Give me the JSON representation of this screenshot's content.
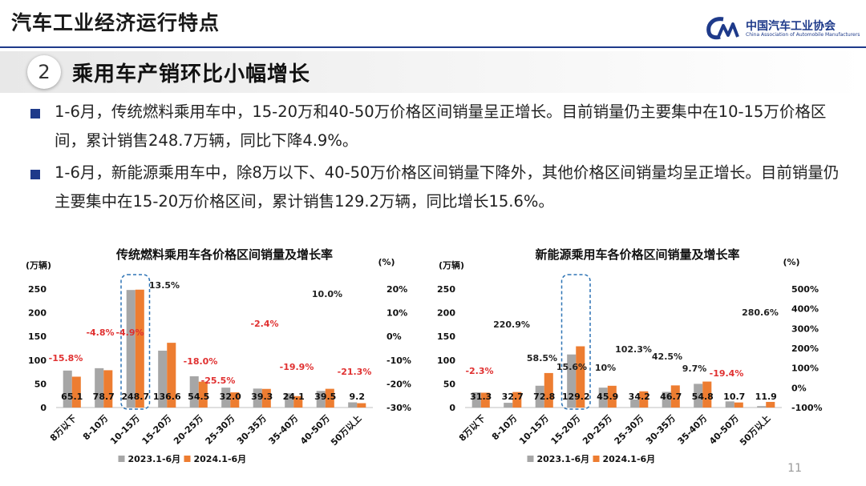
{
  "header": {
    "title": "汽车工业经济运行特点",
    "logo_cn": "中国汽车工业协会",
    "logo_en": "China Association of Automobile Manufacturers"
  },
  "section": {
    "number": "2",
    "title": "乘用车产销环比小幅增长"
  },
  "bullets": [
    "1-6月，传统燃料乘用车中，15-20万和40-50万价格区间销量呈正增长。目前销量仍主要集中在10-15万价格区间，累计销售248.7万辆，同比下降4.9%。",
    "1-6月，新能源乘用车中，除8万以下、40-50万价格区间销量下降外，其他价格区间销量均呈正增长。目前销量仍主要集中在15-20万价格区间，累计销售129.2万辆，同比增长15.6%。"
  ],
  "page_number": "11",
  "colors": {
    "series_2023": "#a6a6a6",
    "series_2024": "#ed7d31",
    "growth_negative": "#e03030",
    "growth_positive": "#222222",
    "highlight_box": "#2e74b5",
    "accent": "#1e3a8a"
  },
  "chart_data": [
    {
      "type": "bar",
      "title": "传统燃料乘用车各价格区间销量及增长率",
      "ylabel": "(万辆)",
      "y2label": "(%)",
      "ylim": [
        0,
        250
      ],
      "yticks": [
        0,
        50,
        100,
        150,
        200,
        250
      ],
      "y2ticks": [
        "-30%",
        "-20%",
        "-10%",
        "0%",
        "10%",
        "20%"
      ],
      "categories": [
        "8万以下",
        "8-10万",
        "10-15万",
        "15-20万",
        "20-25万",
        "25-30万",
        "30-35万",
        "35-40万",
        "40-50万",
        "50万以上"
      ],
      "series": [
        {
          "name": "2023.1-6月",
          "values": [
            78,
            83,
            248,
            120,
            66,
            42,
            40,
            30,
            35,
            11
          ]
        },
        {
          "name": "2024.1-6月",
          "values": [
            65.1,
            78.7,
            248.7,
            136.6,
            54.5,
            32.0,
            39.3,
            24.1,
            39.5,
            9.2
          ]
        }
      ],
      "value_labels": [
        "65.1",
        "78.7",
        "248.7",
        "136.6",
        "54.5",
        "32.0",
        "39.3",
        "24.1",
        "39.5",
        "9.2"
      ],
      "growth_labels": [
        "-15.8%",
        "-4.8%",
        "-4.9%",
        "13.5%",
        "-18.0%",
        "-25.5%",
        "-2.4%",
        "-19.9%",
        "10.0%",
        "-21.3%"
      ],
      "growth_values": [
        -15.8,
        -4.8,
        -4.9,
        13.5,
        -18.0,
        -25.5,
        -2.4,
        -19.9,
        10.0,
        -21.3
      ],
      "highlight_category": "10-15万",
      "legend": "bottom"
    },
    {
      "type": "bar",
      "title": "新能源乘用车各价格区间销量及增长率",
      "ylabel": "(万辆)",
      "y2label": "(%)",
      "ylim": [
        0,
        250
      ],
      "yticks": [
        0,
        50,
        100,
        150,
        200,
        250
      ],
      "y2ticks": [
        "-100%",
        "0%",
        "100%",
        "200%",
        "300%",
        "400%",
        "500%"
      ],
      "categories": [
        "8万以下",
        "8-10万",
        "10-15万",
        "15-20万",
        "20-25万",
        "25-30万",
        "30-35万",
        "35-40万",
        "40-50万",
        "50万以上"
      ],
      "series": [
        {
          "name": "2023.1-6月",
          "values": [
            32,
            10,
            46,
            112,
            42,
            17,
            33,
            50,
            13,
            3
          ]
        },
        {
          "name": "2024.1-6月",
          "values": [
            31.3,
            32.7,
            72.8,
            129.2,
            45.9,
            34.2,
            46.7,
            54.8,
            10.7,
            11.9
          ]
        }
      ],
      "value_labels": [
        "31.3",
        "32.7",
        "72.8",
        "129.2",
        "45.9",
        "34.2",
        "46.7",
        "54.8",
        "10.7",
        "11.9"
      ],
      "growth_labels": [
        "-2.3%",
        "220.9%",
        "58.5%",
        "15.6%",
        "10%",
        "102.3%",
        "42.5%",
        "9.7%",
        "-19.4%",
        "280.6%"
      ],
      "growth_values": [
        -2.3,
        220.9,
        58.5,
        15.6,
        10,
        102.3,
        42.5,
        9.7,
        -19.4,
        280.6
      ],
      "highlight_category": "15-20万",
      "legend": "bottom"
    }
  ]
}
